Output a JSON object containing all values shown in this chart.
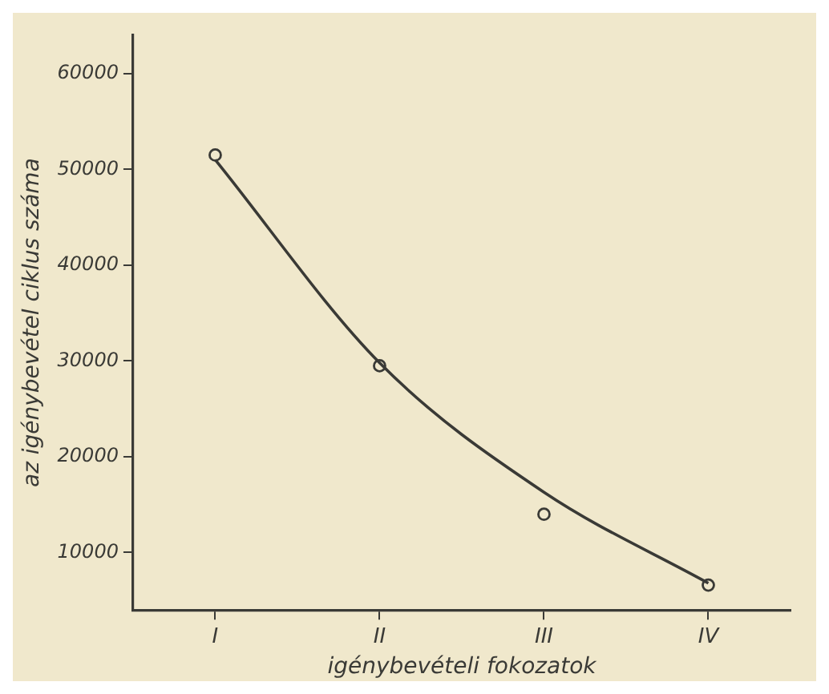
{
  "chart_data": {
    "type": "scatter",
    "xlabel": "igénybevételi fokozatok",
    "ylabel": "az igénybevétel ciklus száma",
    "categories": [
      "I",
      "II",
      "III",
      "IV"
    ],
    "ylim": [
      4000,
      64000
    ],
    "yticks": [
      10000,
      20000,
      30000,
      40000,
      50000,
      60000
    ],
    "grid": false,
    "marker": "circle",
    "series": [
      {
        "color": "#3a3a36",
        "values": [
          51500,
          29500,
          14000,
          6600
        ]
      },
      {
        "type": "line",
        "color": "#3a3a36",
        "marker": "none",
        "values": [
          51000,
          29800,
          16300,
          6800
        ]
      }
    ]
  }
}
